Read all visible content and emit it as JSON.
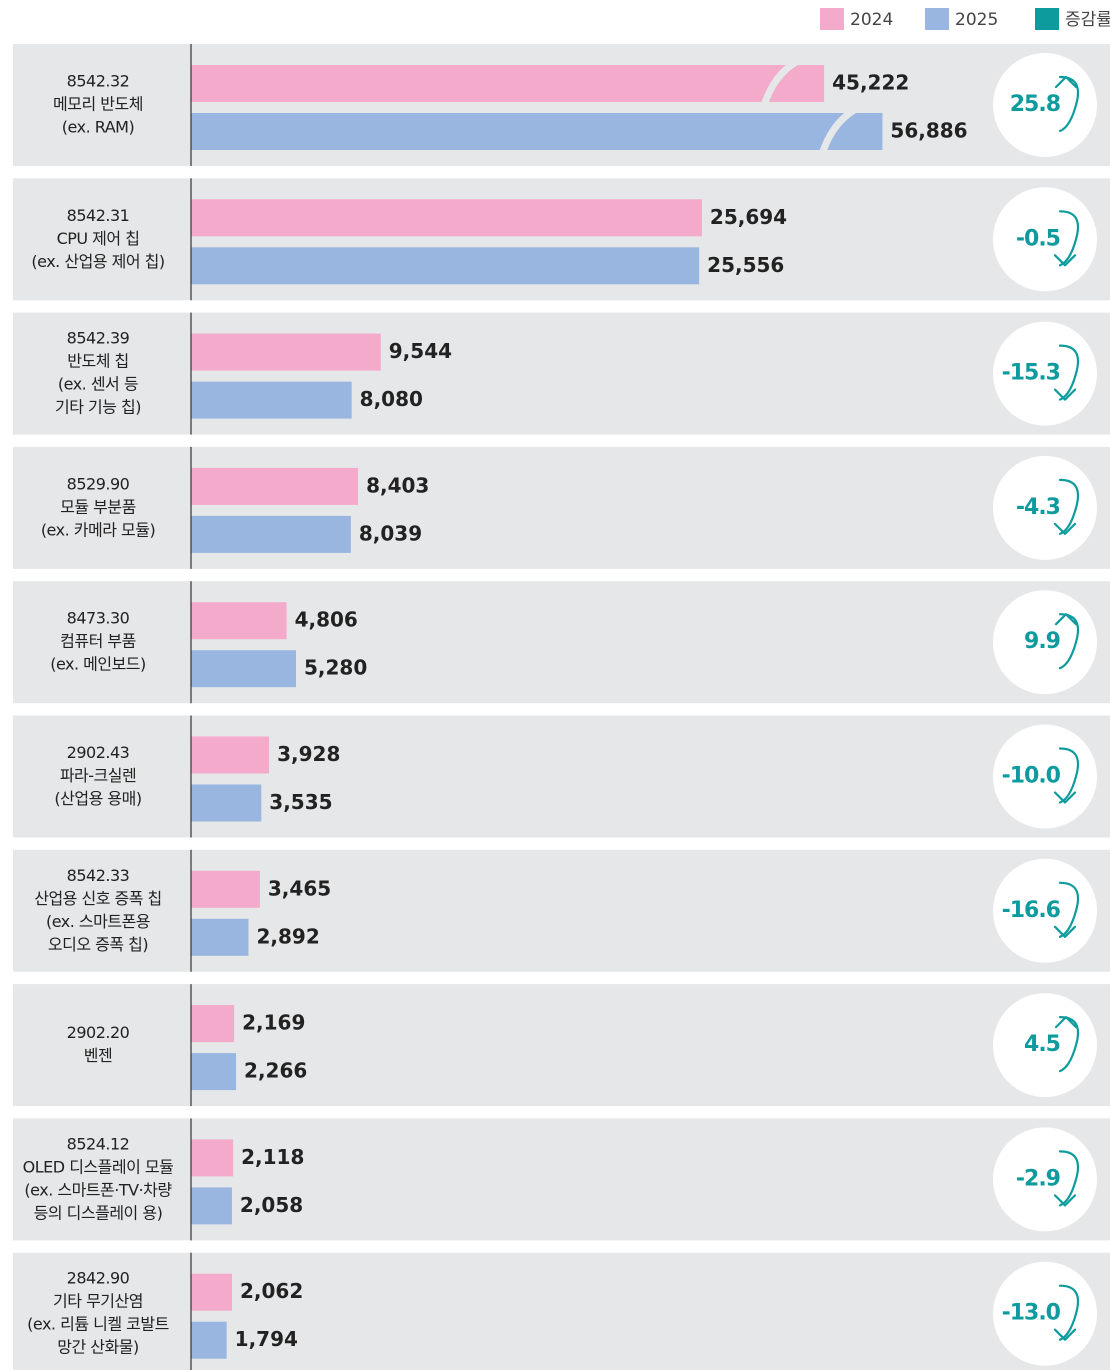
{
  "chart_data": {
    "type": "bar",
    "orientation": "horizontal",
    "categories": [
      [
        "8542.32",
        "메모리 반도체",
        "(ex. RAM)"
      ],
      [
        "8542.31",
        "CPU 제어 칩",
        "(ex. 산업용 제어 칩)"
      ],
      [
        "8542.39",
        "반도체 칩",
        "(ex. 센서 등",
        "기타 기능 칩)"
      ],
      [
        "8529.90",
        "모듈 부분품",
        "(ex. 카메라 모듈)"
      ],
      [
        "8473.30",
        "컴퓨터 부품",
        "(ex. 메인보드)"
      ],
      [
        "2902.43",
        "파라-크실렌",
        "(산업용 용매)"
      ],
      [
        "8542.33",
        "산업용 신호 증폭 칩",
        "(ex. 스마트폰용",
        "오디오 증폭 칩)"
      ],
      [
        "2902.20",
        "벤젠"
      ],
      [
        "8524.12",
        "OLED 디스플레이 모듈",
        "(ex. 스마트폰·TV·차량",
        "등의 디스플레이 용)"
      ],
      [
        "2842.90",
        "기타 무기산염",
        "(ex. 리튬 니켈 코발트",
        "망간 산화물)"
      ]
    ],
    "series": [
      {
        "name": "2024",
        "color": "#f4aacb",
        "values": [
          45222,
          25694,
          9544,
          8403,
          4806,
          3928,
          3465,
          2169,
          2118,
          2062
        ],
        "value_labels": [
          "45,222",
          "25,694",
          "9,544",
          "8,403",
          "4,806",
          "3,928",
          "3,465",
          "2,169",
          "2,118",
          "2,062"
        ]
      },
      {
        "name": "2025",
        "color": "#98b6e0",
        "values": [
          56886,
          25556,
          8080,
          8039,
          5280,
          3535,
          2892,
          2266,
          2058,
          1794
        ],
        "value_labels": [
          "56,886",
          "25,556",
          "8,080",
          "8,039",
          "5,280",
          "3,535",
          "2,892",
          "2,266",
          "2,058",
          "1,794"
        ]
      },
      {
        "name": "증감률",
        "color": "#0e9b9e",
        "values": [
          25.8,
          -0.5,
          -15.3,
          -4.3,
          9.9,
          -10.0,
          -16.6,
          4.5,
          -2.9,
          -13.0
        ],
        "value_labels": [
          "25.8",
          "-0.5",
          "-15.3",
          "-4.3",
          "9.9",
          "-10.0",
          "-16.6",
          "4.5",
          "-2.9",
          "-13.0"
        ]
      }
    ],
    "xlim": [
      0,
      26000
    ]
  }
}
